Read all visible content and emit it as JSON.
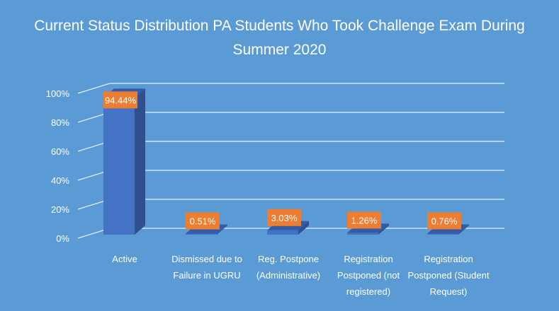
{
  "chart_data": {
    "type": "bar",
    "title_lines": [
      "Current Status Distribution PA Students Who Took Challenge Exam During",
      "Summer 2020"
    ],
    "categories": [
      [
        "Active"
      ],
      [
        "Dismissed due to",
        "Failure in UGRU"
      ],
      [
        "Reg. Postpone",
        "(Administrative)"
      ],
      [
        "Registration",
        "Postponed (not",
        "registered)"
      ],
      [
        "Registration",
        "Postponed (Student",
        "Request)"
      ]
    ],
    "values": [
      94.44,
      0.51,
      3.03,
      1.26,
      0.76
    ],
    "data_labels": [
      "94.44%",
      "0.51%",
      "3.03%",
      "1.26%",
      "0.76%"
    ],
    "y_ticks": [
      "0%",
      "20%",
      "40%",
      "60%",
      "80%",
      "100%"
    ],
    "ylim": [
      0,
      100
    ],
    "grid": true,
    "legend": "none",
    "colors": {
      "background": "#5b9bd5",
      "bar_front": "#4472c4",
      "bar_side": "#2f4f8f",
      "bar_top": "#345ba8",
      "label_box": "#ed7d31",
      "text": "#ffffff",
      "grid": "#ffffff"
    }
  }
}
